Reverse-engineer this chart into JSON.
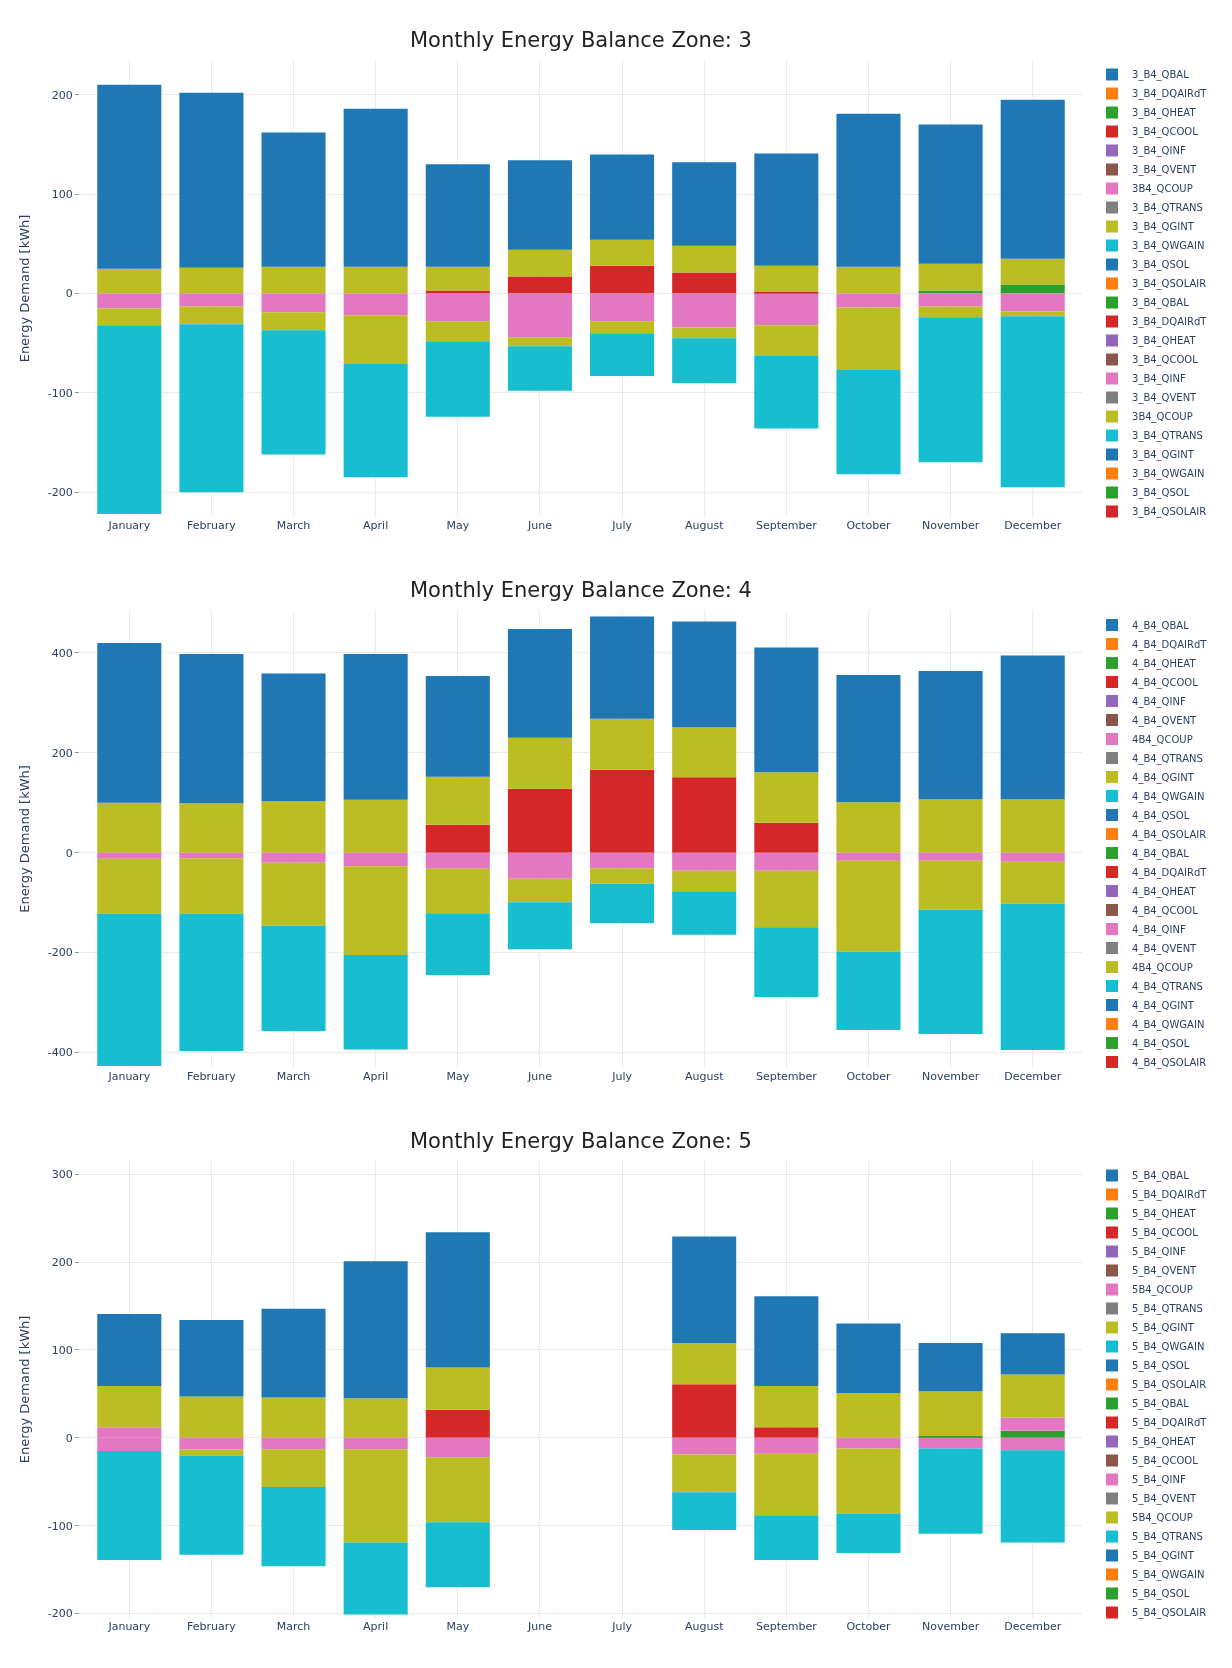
{
  "chart_data": [
    {
      "type": "bar",
      "stacked": true,
      "title": "Monthly Energy Balance Zone: 3",
      "ylabel": "Energy Demand [kWh]",
      "grid": true,
      "legend": "right",
      "categories": [
        "January",
        "February",
        "March",
        "April",
        "May",
        "June",
        "July",
        "August",
        "September",
        "October",
        "November",
        "December"
      ],
      "ylim": [
        -225,
        235
      ],
      "yticks": [
        -200,
        -100,
        0,
        100,
        200
      ],
      "series": [
        {
          "name": "3_B4_QBAL",
          "color": "#1f77b4",
          "values": [
            null,
            null,
            null,
            null,
            null,
            null,
            null,
            null,
            null,
            null,
            null,
            null
          ]
        },
        {
          "name": "3_B4_DQAIRdT",
          "color": "#ff7f0e",
          "values": [
            null,
            null,
            null,
            null,
            null,
            null,
            null,
            null,
            null,
            null,
            null,
            null
          ]
        },
        {
          "name": "3_B4_QHEAT",
          "color": "#2ca02c",
          "values": [
            null,
            null,
            null,
            null,
            null,
            null,
            null,
            null,
            null,
            null,
            3,
            9
          ]
        },
        {
          "name": "3_B4_QCOOL",
          "color": "#d62728",
          "values": [
            null,
            null,
            null,
            null,
            3,
            17,
            28,
            21,
            2,
            null,
            null,
            null
          ]
        },
        {
          "name": "3_B4_QINF",
          "color": "#9467bd",
          "values": [
            null,
            null,
            null,
            null,
            null,
            null,
            null,
            null,
            null,
            null,
            null,
            null
          ]
        },
        {
          "name": "3_B4_QVENT",
          "color": "#8c564b",
          "values": [
            null,
            null,
            null,
            null,
            null,
            null,
            null,
            null,
            null,
            null,
            null,
            null
          ]
        },
        {
          "name": "3B4_QCOUP",
          "color": "#e377c2",
          "values": [
            null,
            null,
            null,
            null,
            null,
            null,
            null,
            null,
            null,
            null,
            null,
            null
          ]
        },
        {
          "name": "3_B4_QTRANS",
          "color": "#7f7f7f",
          "values": [
            null,
            null,
            null,
            null,
            null,
            null,
            null,
            null,
            null,
            null,
            null,
            null
          ]
        },
        {
          "name": "3_B4_QGINT",
          "color": "#bcbd22",
          "values": [
            25,
            26,
            27,
            27,
            24,
            27,
            26,
            27,
            26,
            27,
            27,
            26
          ]
        },
        {
          "name": "3_B4_QWGAIN",
          "color": "#17becf",
          "values": [
            null,
            null,
            null,
            null,
            null,
            null,
            null,
            null,
            null,
            null,
            null,
            null
          ]
        },
        {
          "name": "3_B4_QSOL",
          "color": "#1f77b4",
          "values": [
            185,
            176,
            135,
            159,
            103,
            90,
            86,
            84,
            113,
            154,
            140,
            160
          ]
        },
        {
          "name": "3_B4_QSOLAIR",
          "color": "#ff7f0e",
          "values": [
            null,
            null,
            null,
            null,
            null,
            null,
            null,
            null,
            null,
            null,
            null,
            null
          ]
        },
        {
          "name": "3_B4_QBAL",
          "color": "#2ca02c",
          "values": [
            null,
            null,
            null,
            null,
            null,
            null,
            null,
            null,
            null,
            null,
            null,
            null
          ]
        },
        {
          "name": "3_B4_DQAIRdT",
          "color": "#d62728",
          "values": [
            null,
            null,
            null,
            null,
            null,
            null,
            null,
            null,
            null,
            null,
            null,
            null
          ]
        },
        {
          "name": "3_B4_QHEAT",
          "color": "#9467bd",
          "values": [
            null,
            null,
            null,
            null,
            null,
            null,
            null,
            null,
            null,
            null,
            null,
            null
          ]
        },
        {
          "name": "3_B4_QCOOL",
          "color": "#8c564b",
          "values": [
            null,
            null,
            null,
            null,
            null,
            null,
            null,
            null,
            null,
            null,
            null,
            null
          ]
        },
        {
          "name": "3_B4_QINF",
          "color": "#e377c2",
          "values": [
            -15,
            -13,
            -19,
            -22,
            -28,
            -44,
            -28,
            -34,
            -32,
            -14,
            -13,
            -18
          ]
        },
        {
          "name": "3_B4_QVENT",
          "color": "#7f7f7f",
          "values": [
            null,
            null,
            null,
            null,
            null,
            null,
            null,
            null,
            null,
            null,
            null,
            null
          ]
        },
        {
          "name": "3B4_QCOUP",
          "color": "#bcbd22",
          "values": [
            -17,
            -18,
            -18,
            -49,
            -20,
            -9,
            -12,
            -11,
            -31,
            -63,
            -11,
            -5
          ]
        },
        {
          "name": "3_B4_QTRANS",
          "color": "#17becf",
          "values": [
            -190,
            -169,
            -125,
            -114,
            -76,
            -45,
            -43,
            -45,
            -73,
            -105,
            -146,
            -172
          ]
        },
        {
          "name": "3_B4_QGINT",
          "color": "#1f77b4",
          "values": [
            null,
            null,
            null,
            null,
            null,
            null,
            null,
            null,
            null,
            null,
            null,
            null
          ]
        },
        {
          "name": "3_B4_QWGAIN",
          "color": "#ff7f0e",
          "values": [
            null,
            null,
            null,
            null,
            null,
            null,
            null,
            null,
            null,
            null,
            null,
            null
          ]
        },
        {
          "name": "3_B4_QSOL",
          "color": "#2ca02c",
          "values": [
            null,
            null,
            null,
            null,
            null,
            null,
            null,
            null,
            null,
            null,
            null,
            null
          ]
        },
        {
          "name": "3_B4_QSOLAIR",
          "color": "#d62728",
          "values": [
            null,
            null,
            null,
            null,
            null,
            null,
            null,
            null,
            null,
            null,
            null,
            null
          ]
        }
      ]
    },
    {
      "type": "bar",
      "stacked": true,
      "title": "Monthly Energy Balance Zone: 4",
      "ylabel": "Energy Demand [kWh]",
      "grid": true,
      "legend": "right",
      "categories": [
        "January",
        "February",
        "March",
        "April",
        "May",
        "June",
        "July",
        "August",
        "September",
        "October",
        "November",
        "December"
      ],
      "ylim": [
        -430,
        485
      ],
      "yticks": [
        -400,
        -200,
        0,
        200,
        400
      ],
      "series": [
        {
          "name": "4_B4_QBAL",
          "color": "#1f77b4",
          "values": [
            null,
            null,
            null,
            null,
            null,
            null,
            null,
            null,
            null,
            null,
            null,
            null
          ]
        },
        {
          "name": "4_B4_DQAIRdT",
          "color": "#ff7f0e",
          "values": [
            null,
            null,
            null,
            null,
            null,
            null,
            null,
            null,
            null,
            null,
            null,
            null
          ]
        },
        {
          "name": "4_B4_QHEAT",
          "color": "#2ca02c",
          "values": [
            null,
            null,
            null,
            null,
            null,
            null,
            null,
            null,
            null,
            null,
            null,
            null
          ]
        },
        {
          "name": "4_B4_QCOOL",
          "color": "#d62728",
          "values": [
            null,
            null,
            null,
            null,
            56,
            128,
            166,
            151,
            60,
            null,
            null,
            null
          ]
        },
        {
          "name": "4_B4_QINF",
          "color": "#9467bd",
          "values": [
            null,
            null,
            null,
            null,
            null,
            null,
            null,
            null,
            null,
            null,
            null,
            null
          ]
        },
        {
          "name": "4_B4_QVENT",
          "color": "#8c564b",
          "values": [
            null,
            null,
            null,
            null,
            null,
            null,
            null,
            null,
            null,
            null,
            null,
            null
          ]
        },
        {
          "name": "4B4_QCOUP",
          "color": "#e377c2",
          "values": [
            null,
            null,
            null,
            null,
            null,
            null,
            null,
            null,
            null,
            null,
            null,
            null
          ]
        },
        {
          "name": "4_B4_QTRANS",
          "color": "#7f7f7f",
          "values": [
            null,
            null,
            null,
            null,
            null,
            null,
            null,
            null,
            null,
            null,
            null,
            null
          ]
        },
        {
          "name": "4_B4_QGINT",
          "color": "#bcbd22",
          "values": [
            100,
            99,
            103,
            106,
            96,
            102,
            102,
            100,
            101,
            101,
            107,
            107
          ]
        },
        {
          "name": "4_B4_QWGAIN",
          "color": "#17becf",
          "values": [
            null,
            null,
            null,
            null,
            null,
            null,
            null,
            null,
            null,
            null,
            null,
            null
          ]
        },
        {
          "name": "4_B4_QSOL",
          "color": "#1f77b4",
          "values": [
            320,
            299,
            256,
            292,
            202,
            218,
            205,
            212,
            250,
            255,
            257,
            288
          ]
        },
        {
          "name": "4_B4_QSOLAIR",
          "color": "#ff7f0e",
          "values": [
            null,
            null,
            null,
            null,
            null,
            null,
            null,
            null,
            null,
            null,
            null,
            null
          ]
        },
        {
          "name": "4_B4_QBAL",
          "color": "#2ca02c",
          "values": [
            null,
            null,
            null,
            null,
            null,
            null,
            null,
            null,
            null,
            null,
            null,
            null
          ]
        },
        {
          "name": "4_B4_DQAIRdT",
          "color": "#d62728",
          "values": [
            null,
            null,
            null,
            null,
            null,
            null,
            null,
            null,
            null,
            null,
            null,
            null
          ]
        },
        {
          "name": "4_B4_QHEAT",
          "color": "#9467bd",
          "values": [
            null,
            null,
            null,
            null,
            null,
            null,
            null,
            null,
            null,
            null,
            null,
            null
          ]
        },
        {
          "name": "4_B4_QCOOL",
          "color": "#8c564b",
          "values": [
            null,
            null,
            null,
            null,
            null,
            null,
            null,
            null,
            null,
            null,
            null,
            null
          ]
        },
        {
          "name": "4_B4_QINF",
          "color": "#e377c2",
          "values": [
            -12,
            -11,
            -20,
            -27,
            -32,
            -52,
            -31,
            -36,
            -36,
            -16,
            -16,
            -18
          ]
        },
        {
          "name": "4_B4_QVENT",
          "color": "#7f7f7f",
          "values": [
            null,
            null,
            null,
            null,
            null,
            null,
            null,
            null,
            null,
            null,
            null,
            null
          ]
        },
        {
          "name": "4B4_QCOUP",
          "color": "#bcbd22",
          "values": [
            -110,
            -111,
            -126,
            -178,
            -89,
            -47,
            -31,
            -41,
            -113,
            -182,
            -98,
            -84
          ]
        },
        {
          "name": "4_B4_QTRANS",
          "color": "#17becf",
          "values": [
            -305,
            -275,
            -211,
            -189,
            -124,
            -94,
            -79,
            -87,
            -140,
            -157,
            -249,
            -293
          ]
        },
        {
          "name": "4_B4_QGINT",
          "color": "#1f77b4",
          "values": [
            null,
            null,
            null,
            null,
            null,
            null,
            null,
            null,
            null,
            null,
            null,
            null
          ]
        },
        {
          "name": "4_B4_QWGAIN",
          "color": "#ff7f0e",
          "values": [
            null,
            null,
            null,
            null,
            null,
            null,
            null,
            null,
            null,
            null,
            null,
            null
          ]
        },
        {
          "name": "4_B4_QSOL",
          "color": "#2ca02c",
          "values": [
            null,
            null,
            null,
            null,
            null,
            null,
            null,
            null,
            null,
            null,
            null,
            null
          ]
        },
        {
          "name": "4_B4_QSOLAIR",
          "color": "#d62728",
          "values": [
            null,
            null,
            null,
            null,
            null,
            null,
            null,
            null,
            null,
            null,
            null,
            null
          ]
        }
      ]
    },
    {
      "type": "bar",
      "stacked": true,
      "title": "Monthly Energy Balance Zone: 5",
      "ylabel": "Energy Demand [kWh]",
      "grid": true,
      "legend": "right",
      "categories": [
        "January",
        "February",
        "March",
        "April",
        "May",
        "June",
        "July",
        "August",
        "September",
        "October",
        "November",
        "December"
      ],
      "ylim": [
        -205,
        315
      ],
      "yticks": [
        -200,
        -100,
        0,
        100,
        200,
        300
      ],
      "series": [
        {
          "name": "5_B4_QBAL",
          "color": "#1f77b4",
          "values": [
            null,
            null,
            null,
            null,
            null,
            null,
            null,
            null,
            null,
            null,
            null,
            null
          ]
        },
        {
          "name": "5_B4_DQAIRdT",
          "color": "#ff7f0e",
          "values": [
            null,
            null,
            null,
            null,
            null,
            null,
            null,
            null,
            null,
            null,
            null,
            null
          ]
        },
        {
          "name": "5_B4_QHEAT",
          "color": "#2ca02c",
          "values": [
            null,
            null,
            null,
            null,
            null,
            null,
            null,
            null,
            null,
            null,
            2,
            8
          ]
        },
        {
          "name": "5_B4_QCOOL",
          "color": "#d62728",
          "values": [
            null,
            null,
            null,
            null,
            32,
            null,
            null,
            61,
            12,
            null,
            null,
            null
          ]
        },
        {
          "name": "5_B4_QINF",
          "color": "#9467bd",
          "values": [
            null,
            null,
            null,
            null,
            null,
            null,
            null,
            null,
            null,
            null,
            null,
            null
          ]
        },
        {
          "name": "5_B4_QVENT",
          "color": "#8c564b",
          "values": [
            null,
            null,
            null,
            null,
            null,
            null,
            null,
            null,
            null,
            null,
            null,
            null
          ]
        },
        {
          "name": "5B4_QCOUP",
          "color": "#e377c2",
          "values": [
            12,
            null,
            null,
            null,
            null,
            null,
            null,
            null,
            null,
            null,
            null,
            15
          ]
        },
        {
          "name": "5_B4_QTRANS",
          "color": "#7f7f7f",
          "values": [
            null,
            null,
            null,
            null,
            null,
            null,
            null,
            null,
            null,
            null,
            null,
            null
          ]
        },
        {
          "name": "5_B4_QGINT",
          "color": "#bcbd22",
          "values": [
            47,
            47,
            46,
            45,
            48,
            null,
            null,
            47,
            47,
            51,
            51,
            49
          ]
        },
        {
          "name": "5_B4_QWGAIN",
          "color": "#17becf",
          "values": [
            null,
            null,
            null,
            null,
            null,
            null,
            null,
            null,
            null,
            null,
            null,
            null
          ]
        },
        {
          "name": "5_B4_QSOL",
          "color": "#1f77b4",
          "values": [
            82,
            87,
            101,
            156,
            154,
            null,
            null,
            121,
            102,
            79,
            55,
            47
          ]
        },
        {
          "name": "5_B4_QSOLAIR",
          "color": "#ff7f0e",
          "values": [
            null,
            null,
            null,
            null,
            null,
            null,
            null,
            null,
            null,
            null,
            null,
            null
          ]
        },
        {
          "name": "5_B4_QBAL",
          "color": "#2ca02c",
          "values": [
            null,
            null,
            null,
            null,
            null,
            null,
            null,
            null,
            null,
            null,
            null,
            null
          ]
        },
        {
          "name": "5_B4_DQAIRdT",
          "color": "#d62728",
          "values": [
            null,
            null,
            null,
            null,
            null,
            null,
            null,
            null,
            null,
            null,
            null,
            null
          ]
        },
        {
          "name": "5_B4_QHEAT",
          "color": "#9467bd",
          "values": [
            null,
            null,
            null,
            null,
            null,
            null,
            null,
            null,
            null,
            null,
            null,
            null
          ]
        },
        {
          "name": "5_B4_QCOOL",
          "color": "#8c564b",
          "values": [
            null,
            null,
            null,
            null,
            null,
            null,
            null,
            null,
            null,
            null,
            null,
            null
          ]
        },
        {
          "name": "5_B4_QINF",
          "color": "#e377c2",
          "values": [
            -15,
            -13,
            -13,
            -13,
            -22,
            null,
            null,
            -19,
            -18,
            -12,
            -12,
            -14
          ]
        },
        {
          "name": "5_B4_QVENT",
          "color": "#7f7f7f",
          "values": [
            null,
            null,
            null,
            null,
            null,
            null,
            null,
            null,
            null,
            null,
            null,
            null
          ]
        },
        {
          "name": "5B4_QCOUP",
          "color": "#bcbd22",
          "values": [
            null,
            -7,
            -43,
            -106,
            -74,
            null,
            null,
            -43,
            -70,
            -74,
            null,
            null
          ]
        },
        {
          "name": "5_B4_QTRANS",
          "color": "#17becf",
          "values": [
            -124,
            -113,
            -90,
            -82,
            -74,
            null,
            null,
            -43,
            -51,
            -45,
            -97,
            -105
          ]
        },
        {
          "name": "5_B4_QGINT",
          "color": "#1f77b4",
          "values": [
            null,
            null,
            null,
            null,
            null,
            null,
            null,
            null,
            null,
            null,
            null,
            null
          ]
        },
        {
          "name": "5_B4_QWGAIN",
          "color": "#ff7f0e",
          "values": [
            null,
            null,
            null,
            null,
            null,
            null,
            null,
            null,
            null,
            null,
            null,
            null
          ]
        },
        {
          "name": "5_B4_QSOL",
          "color": "#2ca02c",
          "values": [
            null,
            null,
            null,
            null,
            null,
            null,
            null,
            null,
            null,
            null,
            null,
            null
          ]
        },
        {
          "name": "5_B4_QSOLAIR",
          "color": "#d62728",
          "values": [
            null,
            null,
            null,
            null,
            null,
            null,
            null,
            null,
            null,
            null,
            null,
            null
          ]
        }
      ]
    }
  ]
}
